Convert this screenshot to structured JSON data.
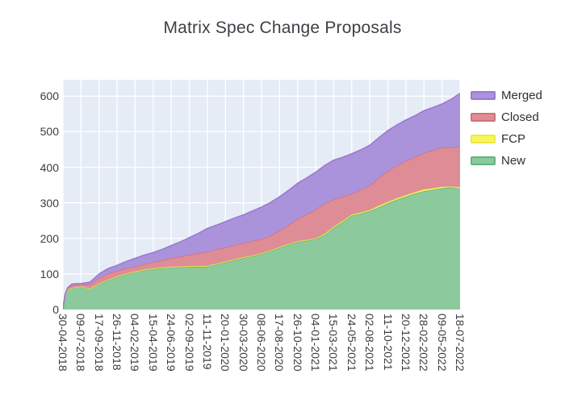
{
  "title": "Matrix Spec Change Proposals",
  "colors": {
    "plot_bg": "#e5ecf6",
    "grid": "#ffffff",
    "title_text": "#3f4047",
    "tick_text": "#3c3c42"
  },
  "legend": {
    "items": [
      {
        "label": "Merged",
        "fill": "#ab93dc",
        "line": "#9a7ad0"
      },
      {
        "label": "Closed",
        "fill": "#de8d96",
        "line": "#d4707b"
      },
      {
        "label": "FCP",
        "fill": "#f7f55f",
        "line": "#efe93e"
      },
      {
        "label": "New",
        "fill": "#8cc99d",
        "line": "#5eb87b"
      }
    ]
  },
  "chart_data": {
    "type": "area",
    "stacked": true,
    "title": "Matrix Spec Change Proposals",
    "xlabel": "",
    "ylabel": "",
    "grid": true,
    "legend_position": "right",
    "ylim": [
      0,
      646
    ],
    "yticks": [
      0,
      100,
      200,
      300,
      400,
      500,
      600
    ],
    "x_tick_labels": [
      "30-04-2018",
      "09-07-2018",
      "17-09-2018",
      "26-11-2018",
      "04-02-2019",
      "15-04-2019",
      "24-06-2019",
      "02-09-2019",
      "11-11-2019",
      "20-01-2020",
      "30-03-2020",
      "08-06-2020",
      "17-08-2020",
      "26-10-2020",
      "04-01-2021",
      "15-03-2021",
      "24-05-2021",
      "02-08-2021",
      "11-10-2021",
      "20-12-2021",
      "28-02-2022",
      "09-05-2022",
      "18-07-2022"
    ],
    "x_tick_days": [
      0,
      70,
      140,
      210,
      280,
      350,
      420,
      490,
      560,
      630,
      700,
      770,
      840,
      910,
      980,
      1050,
      1120,
      1190,
      1260,
      1330,
      1400,
      1470,
      1540
    ],
    "x_dates": [
      "30-04-2018",
      "08-05-2018",
      "18-05-2018",
      "04-06-2018",
      "09-07-2018",
      "13-08-2018",
      "17-09-2018",
      "22-10-2018",
      "26-11-2018",
      "31-12-2018",
      "04-02-2019",
      "11-03-2019",
      "15-04-2019",
      "20-05-2019",
      "24-06-2019",
      "29-07-2019",
      "02-09-2019",
      "07-10-2019",
      "11-11-2019",
      "16-12-2019",
      "20-01-2020",
      "24-02-2020",
      "30-03-2020",
      "04-05-2020",
      "08-06-2020",
      "13-07-2020",
      "17-08-2020",
      "21-09-2020",
      "26-10-2020",
      "30-11-2020",
      "04-01-2021",
      "08-02-2021",
      "15-03-2021",
      "19-04-2021",
      "24-05-2021",
      "28-06-2021",
      "02-08-2021",
      "06-09-2021",
      "11-10-2021",
      "15-11-2021",
      "20-12-2021",
      "24-01-2022",
      "28-02-2022",
      "04-04-2022",
      "09-05-2022",
      "13-06-2022",
      "18-07-2022"
    ],
    "x_days": [
      0,
      8,
      18,
      35,
      70,
      105,
      140,
      175,
      210,
      245,
      280,
      315,
      350,
      385,
      420,
      455,
      490,
      525,
      560,
      595,
      630,
      665,
      700,
      735,
      770,
      805,
      840,
      875,
      910,
      945,
      980,
      1015,
      1050,
      1085,
      1120,
      1155,
      1190,
      1225,
      1260,
      1295,
      1330,
      1365,
      1400,
      1435,
      1470,
      1505,
      1540
    ],
    "series": [
      {
        "name": "New",
        "fill": "#8cc99d",
        "line": "#5eb87b",
        "values": [
          2,
          40,
          55,
          60,
          64,
          58,
          72,
          82,
          91,
          99,
          106,
          110,
          114,
          116,
          118,
          119,
          120,
          120,
          121,
          127,
          133,
          139,
          145,
          150,
          156,
          164,
          174,
          182,
          190,
          194,
          198,
          210,
          230,
          246,
          264,
          270,
          277,
          288,
          299,
          309,
          318,
          326,
          333,
          337,
          341,
          344,
          340
        ]
      },
      {
        "name": "FCP",
        "fill": "#f7f55f",
        "line": "#efe93e",
        "values": [
          0,
          0,
          1,
          1,
          1,
          1,
          1,
          2,
          2,
          2,
          1,
          2,
          2,
          2,
          2,
          2,
          2,
          2,
          2,
          2,
          2,
          2,
          2,
          2,
          2,
          2,
          2,
          2,
          2,
          2,
          2,
          3,
          3,
          3,
          3,
          3,
          3,
          4,
          4,
          4,
          4,
          4,
          5,
          4,
          4,
          2,
          4
        ]
      },
      {
        "name": "Closed",
        "fill": "#de8d96",
        "line": "#d4707b",
        "values": [
          0,
          2,
          4,
          8,
          5,
          12,
          16,
          17,
          16,
          15,
          14,
          16,
          18,
          21,
          25,
          28,
          32,
          36,
          40,
          40,
          40,
          40,
          40,
          41,
          40,
          42,
          46,
          54,
          63,
          72,
          81,
          85,
          77,
          68,
          59,
          64,
          69,
          78,
          87,
          92,
          96,
          99,
          103,
          107,
          111,
          110,
          114
        ]
      },
      {
        "name": "Merged",
        "fill": "#ab93dc",
        "line": "#9a7ad0",
        "values": [
          0,
          0,
          1,
          3,
          3,
          6,
          11,
          14,
          15,
          19,
          23,
          25,
          26,
          30,
          35,
          41,
          48,
          56,
          65,
          68,
          72,
          76,
          79,
          84,
          90,
          93,
          95,
          97,
          100,
          102,
          105,
          107,
          110,
          111,
          112,
          112,
          113,
          113,
          113,
          114,
          115,
          116,
          118,
          120,
          122,
          135,
          150
        ]
      }
    ]
  }
}
